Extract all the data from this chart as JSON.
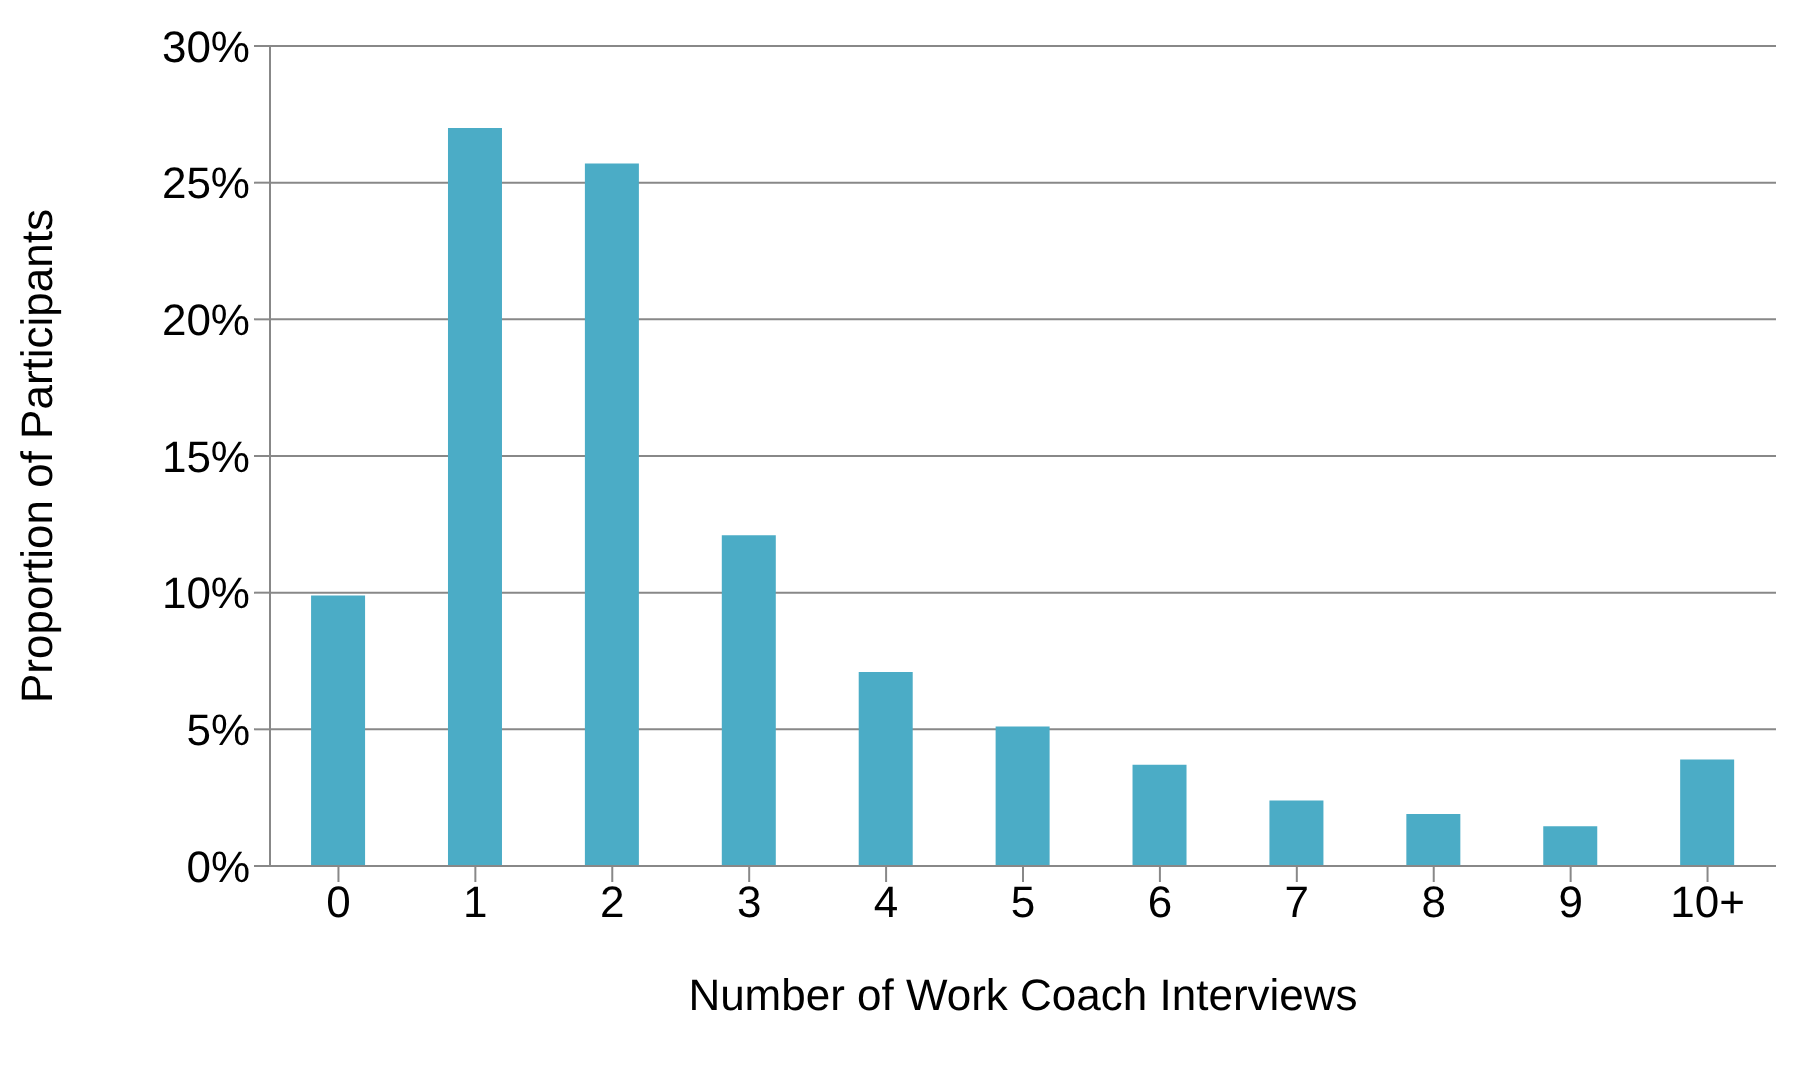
{
  "chart_data": {
    "type": "bar",
    "xlabel": "Number of Work Coach Interviews",
    "ylabel": "Proportion of Participants",
    "categories": [
      "0",
      "1",
      "2",
      "3",
      "4",
      "5",
      "6",
      "7",
      "8",
      "9",
      "10+"
    ],
    "values": [
      9.9,
      27.0,
      25.7,
      12.1,
      7.1,
      5.1,
      3.7,
      2.4,
      1.9,
      1.45,
      3.9
    ],
    "color": "#4bacc6",
    "ylim": [
      0,
      30
    ],
    "yticks": [
      {
        "value": 0,
        "label": "0%"
      },
      {
        "value": 5,
        "label": "5%"
      },
      {
        "value": 10,
        "label": "10%"
      },
      {
        "value": 15,
        "label": "15%"
      },
      {
        "value": 20,
        "label": "20%"
      },
      {
        "value": 25,
        "label": "25%"
      },
      {
        "value": 30,
        "label": "30%"
      }
    ],
    "grid": "y",
    "legend": false
  }
}
